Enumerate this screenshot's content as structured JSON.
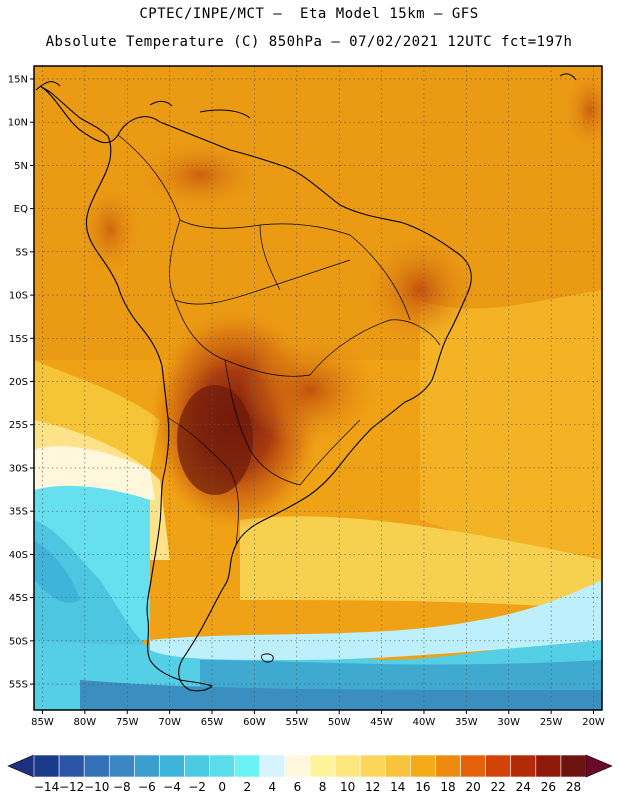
{
  "title": {
    "line1": "CPTEC/INPE/MCT –  Eta Model 15km – GFS",
    "line2": "Absolute Temperature (C) 850hPa – 07/02/2021 12UTC fct=197h"
  },
  "map": {
    "region": "South America",
    "lat_labels": [
      "15N",
      "10N",
      "5N",
      "EQ",
      "5S",
      "10S",
      "15S",
      "20S",
      "25S",
      "30S",
      "35S",
      "40S",
      "45S",
      "50S",
      "55S"
    ],
    "lat_values": [
      15,
      10,
      5,
      0,
      -5,
      -10,
      -15,
      -20,
      -25,
      -30,
      -35,
      -40,
      -45,
      -50,
      -55
    ],
    "lon_labels": [
      "85W",
      "80W",
      "75W",
      "70W",
      "65W",
      "60W",
      "55W",
      "50W",
      "45W",
      "40W",
      "35W",
      "30W",
      "25W",
      "20W"
    ],
    "lon_values": [
      -85,
      -80,
      -75,
      -70,
      -65,
      -60,
      -55,
      -50,
      -45,
      -40,
      -35,
      -30,
      -25,
      -20
    ],
    "lat_range": [
      -58,
      16.5
    ],
    "lon_range": [
      -86,
      -19
    ]
  },
  "colorbar": {
    "labels": [
      "-14",
      "-12",
      "-10",
      "-8",
      "-6",
      "-4",
      "-2",
      "0",
      "2",
      "4",
      "6",
      "8",
      "10",
      "12",
      "14",
      "16",
      "18",
      "20",
      "22",
      "24",
      "26",
      "28"
    ],
    "colors": [
      "#1a3a8c",
      "#2a54a6",
      "#3470b8",
      "#3d86c4",
      "#3c9ecf",
      "#3fb4da",
      "#4ccae2",
      "#5adcea",
      "#6bf2f4",
      "#d6f3ff",
      "#fff7dc",
      "#fff49a",
      "#fde67e",
      "#fbd65a",
      "#f7c43c",
      "#f4ab17",
      "#ef8a10",
      "#e5620a",
      "#d2430a",
      "#b32a08",
      "#8f1a0a",
      "#6e1410"
    ],
    "low_arrow_color": "#1f3080",
    "high_arrow_color": "#6a0a2a"
  }
}
